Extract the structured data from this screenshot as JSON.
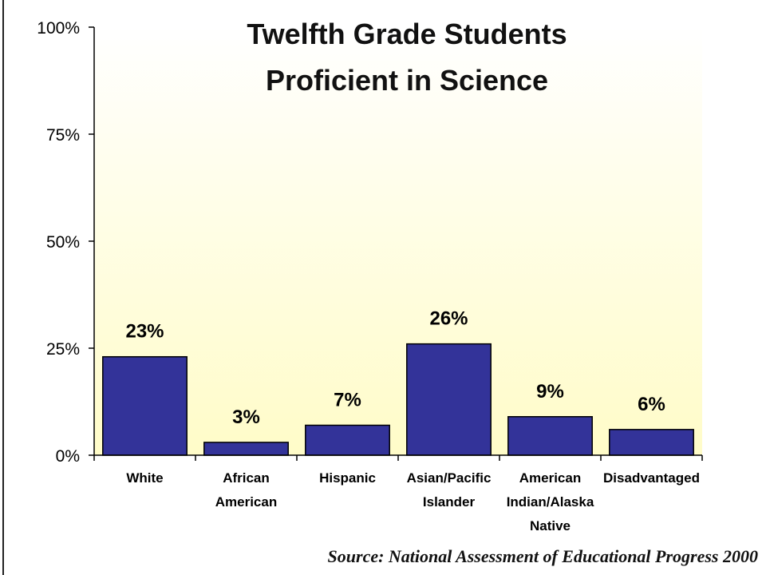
{
  "page": {
    "title_line1": "Twelfth Grade Students",
    "title_line2": "Proficient in Science",
    "source": "Source: National Assessment of Educational Progress 2000"
  },
  "chart_data": {
    "type": "bar",
    "title": "Twelfth Grade Students Proficient in Science",
    "categories": [
      [
        "White"
      ],
      [
        "African",
        "American"
      ],
      [
        "Hispanic"
      ],
      [
        "Asian/Pacific",
        "Islander"
      ],
      [
        "American",
        "Indian/Alaska",
        "Native"
      ],
      [
        "Disadvantaged"
      ]
    ],
    "values": [
      23,
      3,
      7,
      26,
      9,
      6
    ],
    "data_labels": [
      "23%",
      "3%",
      "7%",
      "26%",
      "9%",
      "6%"
    ],
    "ylim": [
      0,
      100
    ],
    "yticks": [
      0,
      25,
      50,
      75,
      100
    ],
    "ytick_labels": [
      "0%",
      "25%",
      "50%",
      "75%",
      "100%"
    ],
    "xlabel": "",
    "ylabel": "",
    "grid": false,
    "colors": {
      "bar_fill": "#333399",
      "bar_stroke": "#000000",
      "plot_bg_top": "#ffffff",
      "plot_bg_bottom": "#fffcc8"
    }
  }
}
